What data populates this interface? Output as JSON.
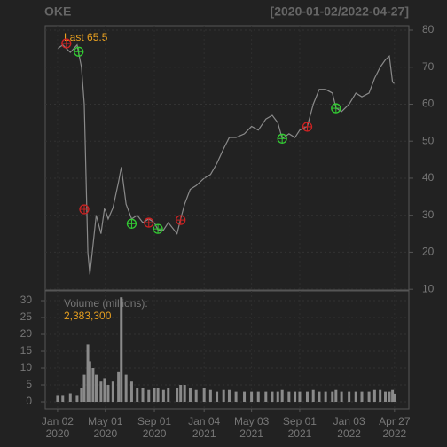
{
  "chart_data": [
    {
      "type": "line",
      "title": "OKE",
      "subtitle": "[2020-01-02/2022-04-27]",
      "annotation": "Last 65.5",
      "x": [
        "2020-01-02",
        "2020-01-15",
        "2020-02-03",
        "2020-02-20",
        "2020-03-02",
        "2020-03-09",
        "2020-03-18",
        "2020-03-23",
        "2020-03-31",
        "2020-04-08",
        "2020-04-20",
        "2020-04-29",
        "2020-05-08",
        "2020-05-20",
        "2020-06-03",
        "2020-06-10",
        "2020-06-22",
        "2020-07-06",
        "2020-07-20",
        "2020-08-03",
        "2020-08-18",
        "2020-09-01",
        "2020-09-10",
        "2020-09-24",
        "2020-10-06",
        "2020-10-28",
        "2020-11-06",
        "2020-11-16",
        "2020-11-30",
        "2020-12-15",
        "2021-01-04",
        "2021-01-20",
        "2021-02-05",
        "2021-02-22",
        "2021-03-08",
        "2021-03-25",
        "2021-04-15",
        "2021-05-03",
        "2021-05-20",
        "2021-06-08",
        "2021-06-24",
        "2021-07-08",
        "2021-07-19",
        "2021-08-05",
        "2021-08-20",
        "2021-09-01",
        "2021-09-20",
        "2021-10-05",
        "2021-10-20",
        "2021-11-05",
        "2021-11-22",
        "2021-12-01",
        "2021-12-15",
        "2022-01-03",
        "2022-01-20",
        "2022-02-04",
        "2022-02-22",
        "2022-03-08",
        "2022-03-22",
        "2022-04-04",
        "2022-04-14",
        "2022-04-22",
        "2022-04-27"
      ],
      "values": [
        75,
        76,
        74,
        76,
        70,
        60,
        20,
        14,
        22,
        30,
        25,
        32,
        29,
        32,
        39,
        43,
        33,
        29,
        30,
        28,
        29,
        28,
        26,
        26,
        28,
        25,
        29,
        33,
        37,
        38,
        40,
        41,
        44,
        48,
        51,
        51,
        52,
        54,
        53,
        56,
        57,
        55,
        50.7,
        52,
        51,
        53,
        54,
        60,
        64,
        64,
        63,
        59,
        58,
        60,
        63,
        62,
        63,
        67,
        70,
        72,
        73,
        66,
        65.5
      ],
      "color": "#8a8a8a",
      "buy_signals": {
        "x": [
          "2020-02-24",
          "2020-07-06",
          "2020-09-10",
          "2021-07-19",
          "2021-12-01"
        ],
        "y": [
          74.2,
          27.7,
          26.3,
          50.7,
          58.9
        ],
        "color": "#33cc33"
      },
      "sell_signals": {
        "x": [
          "2020-01-24",
          "2020-03-09",
          "2020-08-18",
          "2020-11-06",
          "2021-09-20"
        ],
        "y": [
          76.4,
          31.6,
          28,
          28.7,
          53.9
        ],
        "color": "#cc2222"
      },
      "xlim": [
        "2019-12-02",
        "2022-06-02"
      ],
      "ylim": [
        9.8,
        81.2
      ],
      "yticks": [
        10,
        20,
        30,
        40,
        50,
        60,
        70,
        80
      ],
      "grid": true
    },
    {
      "type": "bar",
      "title": "Volume (millions):",
      "annotation": "2,383,300",
      "x": [
        "2020-01-02",
        "2020-01-15",
        "2020-02-03",
        "2020-02-20",
        "2020-03-02",
        "2020-03-09",
        "2020-03-18",
        "2020-03-23",
        "2020-03-31",
        "2020-04-08",
        "2020-04-20",
        "2020-04-29",
        "2020-05-08",
        "2020-05-20",
        "2020-06-03",
        "2020-06-10",
        "2020-06-22",
        "2020-07-06",
        "2020-07-20",
        "2020-08-03",
        "2020-08-18",
        "2020-09-01",
        "2020-09-10",
        "2020-09-24",
        "2020-10-06",
        "2020-10-28",
        "2020-11-06",
        "2020-11-16",
        "2020-11-30",
        "2020-12-15",
        "2021-01-04",
        "2021-01-20",
        "2021-02-05",
        "2021-02-22",
        "2021-03-08",
        "2021-03-25",
        "2021-04-15",
        "2021-05-03",
        "2021-05-20",
        "2021-06-08",
        "2021-06-24",
        "2021-07-08",
        "2021-07-19",
        "2021-08-05",
        "2021-08-20",
        "2021-09-01",
        "2021-09-20",
        "2021-10-05",
        "2021-10-20",
        "2021-11-05",
        "2021-11-22",
        "2021-12-01",
        "2021-12-15",
        "2022-01-03",
        "2022-01-20",
        "2022-02-04",
        "2022-02-22",
        "2022-03-08",
        "2022-03-22",
        "2022-04-04",
        "2022-04-14",
        "2022-04-22",
        "2022-04-27"
      ],
      "values": [
        2,
        2,
        2.5,
        2,
        4,
        8,
        17,
        12,
        10,
        8,
        6,
        7,
        5,
        6,
        9,
        31,
        8,
        6,
        4,
        4,
        3.5,
        4,
        4,
        3.5,
        4,
        4,
        5,
        5,
        4,
        3.5,
        4,
        3.5,
        3,
        3.5,
        3.5,
        3,
        3,
        3,
        3,
        3,
        3,
        3,
        3.5,
        3,
        3,
        3,
        3,
        3.5,
        3,
        3,
        3,
        3.5,
        3,
        3,
        3,
        3,
        3,
        3.5,
        3.5,
        3,
        3,
        3.5,
        2.3833
      ],
      "color": "#8a8a8a",
      "xlim": [
        "2019-12-02",
        "2022-06-02"
      ],
      "ylim": [
        -2.1,
        32.9
      ],
      "yticks": [
        0,
        5,
        10,
        15,
        20,
        25,
        30
      ],
      "grid": true,
      "xticks": [
        {
          "value": "2020-01-02",
          "label": [
            "Jan 02",
            "2020"
          ]
        },
        {
          "value": "2020-05-01",
          "label": [
            "May 01",
            "2020"
          ]
        },
        {
          "value": "2020-09-01",
          "label": [
            "Sep 01",
            "2020"
          ]
        },
        {
          "value": "2021-01-04",
          "label": [
            "Jan 04",
            "2021"
          ]
        },
        {
          "value": "2021-05-03",
          "label": [
            "May 03",
            "2021"
          ]
        },
        {
          "value": "2021-09-01",
          "label": [
            "Sep 01",
            "2021"
          ]
        },
        {
          "value": "2022-01-03",
          "label": [
            "Jan 03",
            "2022"
          ]
        },
        {
          "value": "2022-04-27",
          "label": [
            "Apr 27",
            "2022"
          ]
        }
      ]
    }
  ]
}
